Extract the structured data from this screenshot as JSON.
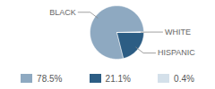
{
  "chart_data": {
    "type": "pie",
    "categories": [
      "BLACK",
      "HISPANIC",
      "WHITE"
    ],
    "values": [
      78.5,
      21.1,
      0.4
    ],
    "value_labels": [
      "78.5%",
      "21.1%",
      "0.4%"
    ],
    "colors": [
      "#8ea9c1",
      "#2c5d84",
      "#d4e0ea"
    ],
    "legend": "bottom"
  }
}
